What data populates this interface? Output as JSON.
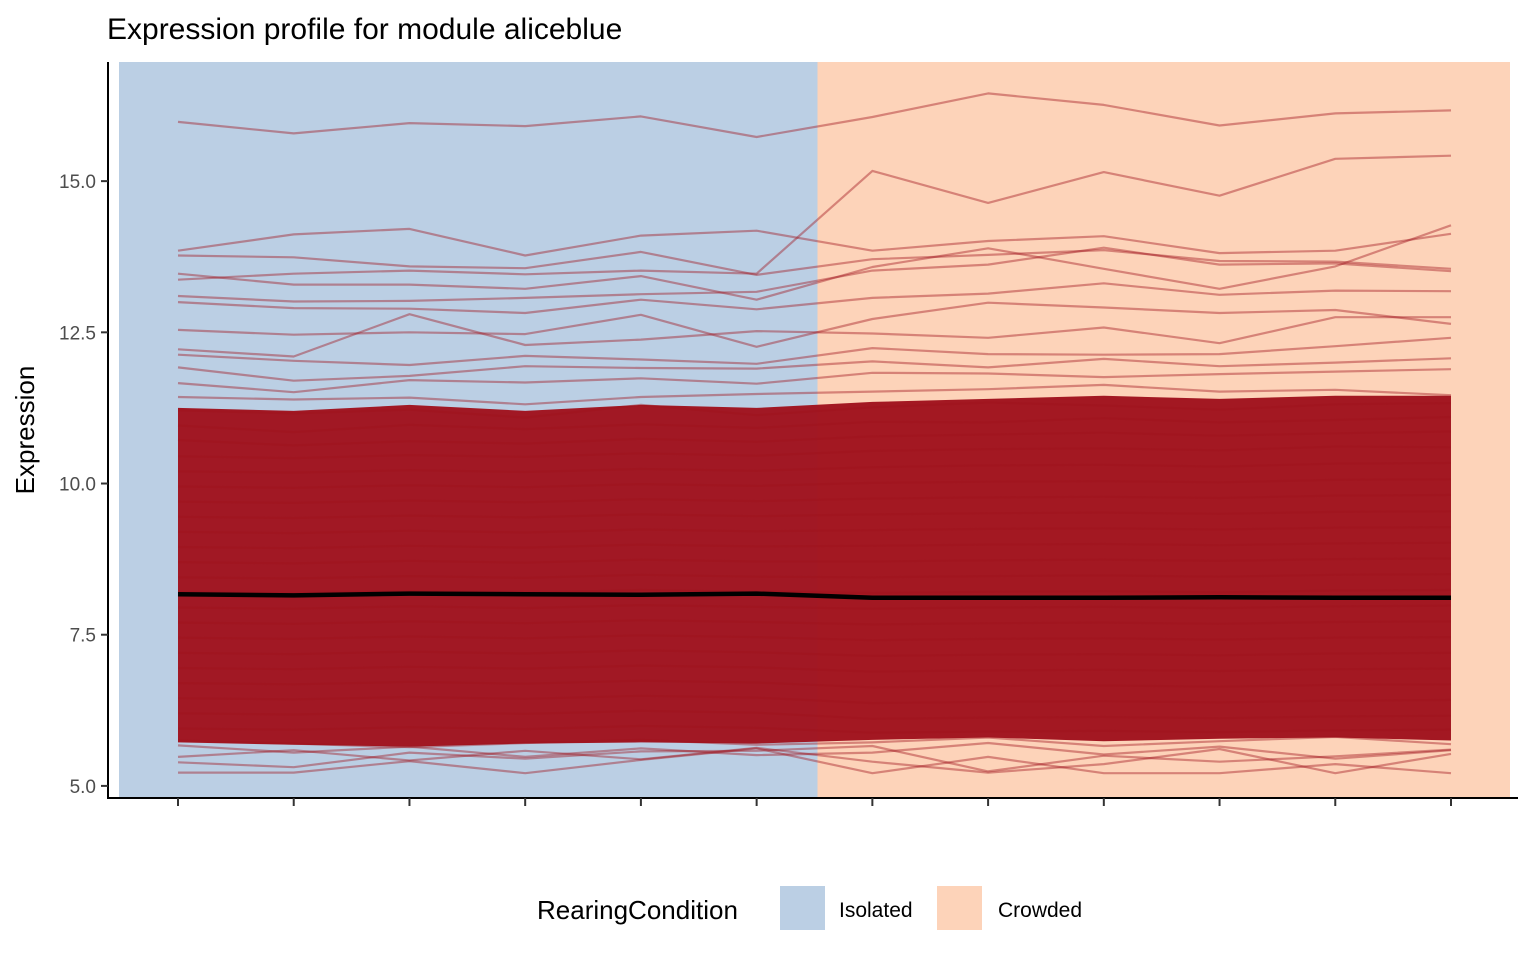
{
  "chart_data": {
    "type": "line",
    "title": "Expression profile for module aliceblue",
    "xlabel": "",
    "ylabel": "Expression",
    "ylim": [
      4.8,
      16.97
    ],
    "yticks": [
      5.0,
      7.5,
      10.0,
      12.5,
      15.0
    ],
    "ytick_labels": [
      "5.0",
      "7.5",
      "10.0",
      "12.5",
      "15.0"
    ],
    "x_count": 12,
    "x_tick_labels": [
      "",
      "",
      "",
      "",
      "",
      "",
      "",
      "",
      "",
      "",
      "",
      ""
    ],
    "grid": false,
    "legend": {
      "title": "RearingCondition",
      "placement": "bottom",
      "entries": [
        {
          "label": "Isolated",
          "color": "#bbcfe4"
        },
        {
          "label": "Crowded",
          "color": "#fdd3b9"
        }
      ]
    },
    "conditions": [
      {
        "name": "Isolated",
        "x_start": 1,
        "x_end": 6,
        "color": "#bbcfe4"
      },
      {
        "name": "Crowded",
        "x_start": 7,
        "x_end": 12,
        "color": "#fdd3b9"
      }
    ],
    "gene_line_color": "#a0121d",
    "mean_line_color": "#000000",
    "mean_series": {
      "name": "",
      "values": [
        8.17,
        8.15,
        8.18,
        8.17,
        8.16,
        8.18,
        8.11,
        8.11,
        8.11,
        8.12,
        8.11,
        8.11
      ]
    },
    "series": [
      {
        "name": "",
        "values": [
          15.98,
          15.79,
          15.96,
          15.91,
          16.07,
          15.73,
          16.06,
          16.45,
          16.26,
          15.92,
          16.12,
          16.17
        ]
      },
      {
        "name": "",
        "values": [
          13.37,
          13.47,
          13.52,
          13.46,
          13.52,
          13.47,
          15.17,
          14.64,
          15.15,
          14.76,
          15.37,
          15.42
        ]
      },
      {
        "name": "",
        "values": [
          13.85,
          14.12,
          14.21,
          13.77,
          14.1,
          14.18,
          13.85,
          14.01,
          14.09,
          13.81,
          13.85,
          14.13
        ]
      },
      {
        "name": "",
        "values": [
          13.77,
          13.74,
          13.59,
          13.56,
          13.83,
          13.45,
          13.71,
          13.78,
          13.86,
          13.68,
          13.67,
          13.55
        ]
      },
      {
        "name": "",
        "values": [
          13.47,
          13.29,
          13.29,
          13.22,
          13.43,
          13.04,
          13.58,
          13.89,
          13.55,
          13.22,
          13.59,
          14.27
        ]
      },
      {
        "name": "",
        "values": [
          13.1,
          13.01,
          13.02,
          13.07,
          13.13,
          13.17,
          13.52,
          13.62,
          13.9,
          13.62,
          13.64,
          13.51
        ]
      },
      {
        "name": "",
        "values": [
          13.0,
          12.9,
          12.89,
          12.82,
          13.04,
          12.88,
          13.07,
          13.14,
          13.31,
          13.12,
          13.19,
          13.18
        ]
      },
      {
        "name": "",
        "values": [
          12.54,
          12.46,
          12.5,
          12.47,
          12.79,
          12.26,
          12.72,
          12.99,
          12.91,
          12.82,
          12.87,
          12.64
        ]
      },
      {
        "name": "",
        "values": [
          12.22,
          12.1,
          12.8,
          12.29,
          12.38,
          12.52,
          12.48,
          12.41,
          12.58,
          12.32,
          12.75,
          12.75
        ]
      },
      {
        "name": "",
        "values": [
          12.13,
          12.03,
          11.96,
          12.11,
          12.05,
          11.98,
          12.24,
          12.14,
          12.13,
          12.14,
          12.27,
          12.41
        ]
      },
      {
        "name": "",
        "values": [
          11.92,
          11.7,
          11.78,
          11.94,
          11.91,
          11.9,
          12.02,
          11.92,
          12.06,
          11.94,
          12.0,
          12.07
        ]
      },
      {
        "name": "",
        "values": [
          11.66,
          11.51,
          11.71,
          11.67,
          11.74,
          11.65,
          11.83,
          11.82,
          11.76,
          11.81,
          11.85,
          11.89
        ]
      },
      {
        "name": "",
        "values": [
          11.43,
          11.39,
          11.42,
          11.31,
          11.43,
          11.48,
          11.52,
          11.56,
          11.63,
          11.52,
          11.55,
          11.46
        ]
      },
      {
        "name": "",
        "values": [
          11.21,
          11.16,
          11.22,
          11.09,
          11.3,
          11.13,
          11.26,
          11.34,
          11.29,
          11.22,
          11.31,
          11.33
        ]
      },
      {
        "name": "",
        "values": [
          10.96,
          10.85,
          10.97,
          10.9,
          10.98,
          10.92,
          11.02,
          11.01,
          11.08,
          11.01,
          11.05,
          11.1
        ]
      },
      {
        "name": "",
        "values": [
          10.72,
          10.63,
          10.7,
          10.66,
          10.74,
          10.69,
          10.78,
          10.81,
          10.84,
          10.79,
          10.83,
          10.86
        ]
      },
      {
        "name": "",
        "values": [
          10.45,
          10.42,
          10.47,
          10.44,
          10.5,
          10.46,
          10.54,
          10.57,
          10.58,
          10.55,
          10.61,
          10.6
        ]
      },
      {
        "name": "",
        "values": [
          10.2,
          10.18,
          10.22,
          10.19,
          10.24,
          10.21,
          10.27,
          10.3,
          10.31,
          10.28,
          10.33,
          10.34
        ]
      },
      {
        "name": "",
        "values": [
          9.95,
          9.93,
          9.97,
          9.94,
          9.99,
          9.96,
          10.01,
          10.03,
          10.04,
          10.02,
          10.06,
          10.07
        ]
      },
      {
        "name": "",
        "values": [
          9.7,
          9.68,
          9.72,
          9.69,
          9.74,
          9.71,
          9.75,
          9.77,
          9.78,
          9.76,
          9.8,
          9.81
        ]
      },
      {
        "name": "",
        "values": [
          9.45,
          9.43,
          9.47,
          9.44,
          9.49,
          9.46,
          9.49,
          9.51,
          9.52,
          9.5,
          9.53,
          9.54
        ]
      },
      {
        "name": "",
        "values": [
          9.2,
          9.18,
          9.22,
          9.19,
          9.24,
          9.21,
          9.23,
          9.25,
          9.26,
          9.24,
          9.27,
          9.28
        ]
      },
      {
        "name": "",
        "values": [
          8.95,
          8.93,
          8.97,
          8.94,
          8.99,
          8.96,
          8.97,
          8.99,
          9.0,
          8.98,
          9.01,
          9.02
        ]
      },
      {
        "name": "",
        "values": [
          8.7,
          8.68,
          8.72,
          8.69,
          8.74,
          8.71,
          8.71,
          8.73,
          8.74,
          8.72,
          8.75,
          8.76
        ]
      },
      {
        "name": "",
        "values": [
          8.45,
          8.43,
          8.47,
          8.44,
          8.49,
          8.46,
          8.45,
          8.47,
          8.48,
          8.46,
          8.49,
          8.5
        ]
      },
      {
        "name": "",
        "values": [
          8.2,
          8.18,
          8.22,
          8.19,
          8.24,
          8.21,
          8.19,
          8.21,
          8.22,
          8.2,
          8.23,
          8.24
        ]
      },
      {
        "name": "",
        "values": [
          7.95,
          7.93,
          7.97,
          7.94,
          7.99,
          7.96,
          7.93,
          7.95,
          7.96,
          7.94,
          7.97,
          7.98
        ]
      },
      {
        "name": "",
        "values": [
          7.7,
          7.68,
          7.72,
          7.69,
          7.74,
          7.71,
          7.67,
          7.69,
          7.7,
          7.68,
          7.71,
          7.72
        ]
      },
      {
        "name": "",
        "values": [
          7.45,
          7.43,
          7.47,
          7.44,
          7.49,
          7.46,
          7.41,
          7.43,
          7.44,
          7.42,
          7.45,
          7.46
        ]
      },
      {
        "name": "",
        "values": [
          7.2,
          7.18,
          7.22,
          7.19,
          7.24,
          7.21,
          7.15,
          7.17,
          7.18,
          7.16,
          7.19,
          7.2
        ]
      },
      {
        "name": "",
        "values": [
          6.95,
          6.93,
          6.97,
          6.94,
          6.99,
          6.96,
          6.89,
          6.91,
          6.92,
          6.9,
          6.93,
          6.94
        ]
      },
      {
        "name": "",
        "values": [
          6.7,
          6.68,
          6.72,
          6.69,
          6.74,
          6.71,
          6.63,
          6.65,
          6.66,
          6.64,
          6.67,
          6.68
        ]
      },
      {
        "name": "",
        "values": [
          6.45,
          6.43,
          6.47,
          6.44,
          6.49,
          6.46,
          6.37,
          6.39,
          6.4,
          6.38,
          6.41,
          6.42
        ]
      },
      {
        "name": "",
        "values": [
          6.2,
          6.18,
          6.22,
          6.19,
          6.24,
          6.21,
          6.11,
          6.13,
          6.14,
          6.12,
          6.15,
          6.16
        ]
      },
      {
        "name": "",
        "values": [
          5.95,
          5.93,
          5.97,
          5.94,
          5.99,
          5.96,
          5.88,
          5.9,
          5.91,
          5.89,
          5.92,
          5.93
        ]
      },
      {
        "name": "",
        "values": [
          5.75,
          5.7,
          5.64,
          5.71,
          5.76,
          5.68,
          5.72,
          5.8,
          5.66,
          5.74,
          5.81,
          5.69
        ]
      },
      {
        "name": "",
        "values": [
          5.67,
          5.55,
          5.65,
          5.48,
          5.62,
          5.51,
          5.55,
          5.71,
          5.52,
          5.65,
          5.45,
          5.59
        ]
      },
      {
        "name": "",
        "values": [
          5.48,
          5.59,
          5.42,
          5.58,
          5.44,
          5.63,
          5.4,
          5.22,
          5.36,
          5.61,
          5.21,
          5.53
        ]
      },
      {
        "name": "",
        "values": [
          5.22,
          5.22,
          5.41,
          5.21,
          5.43,
          5.62,
          5.21,
          5.48,
          5.21,
          5.21,
          5.36,
          5.21
        ]
      },
      {
        "name": "",
        "values": [
          5.39,
          5.31,
          5.55,
          5.45,
          5.57,
          5.58,
          5.66,
          5.24,
          5.5,
          5.4,
          5.49,
          5.6
        ]
      }
    ]
  }
}
